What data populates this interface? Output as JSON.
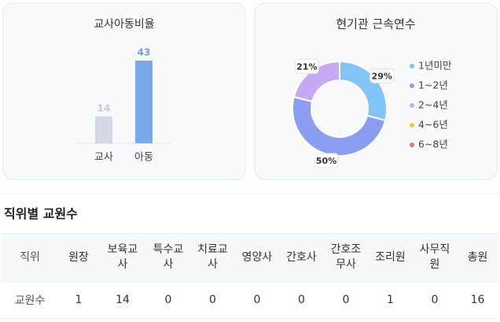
{
  "chart_data": [
    {
      "type": "bar",
      "title": "교사아동비율",
      "categories": [
        "교사",
        "아동"
      ],
      "values": [
        14,
        43
      ],
      "colors": [
        "#d3d7e6",
        "#7aa8e8"
      ],
      "label_colors": [
        "#c5cad9",
        "#6f9fe6"
      ]
    },
    {
      "type": "pie",
      "title": "현기관 근속연수",
      "categories": [
        "1년미만",
        "1~2년",
        "2~4년",
        "4~6년",
        "6~8년"
      ],
      "values": [
        29,
        50,
        21,
        0,
        0
      ],
      "value_labels": [
        "29%",
        "50%",
        "21%",
        null,
        null
      ],
      "colors": [
        "#80c4f8",
        "#8b9df0",
        "#c6a9f5",
        "#f5c842",
        "#f27272"
      ],
      "legend": "right"
    }
  ],
  "table": {
    "title": "직위별 교원수",
    "header": [
      "직위",
      "원장",
      "보육교사",
      "특수교사",
      "치료교사",
      "영양사",
      "간호사",
      "간호조무사",
      "조리원",
      "사무직원",
      "총원"
    ],
    "rows": [
      [
        "교원수",
        1,
        14,
        0,
        0,
        0,
        0,
        0,
        1,
        0,
        16
      ]
    ]
  }
}
